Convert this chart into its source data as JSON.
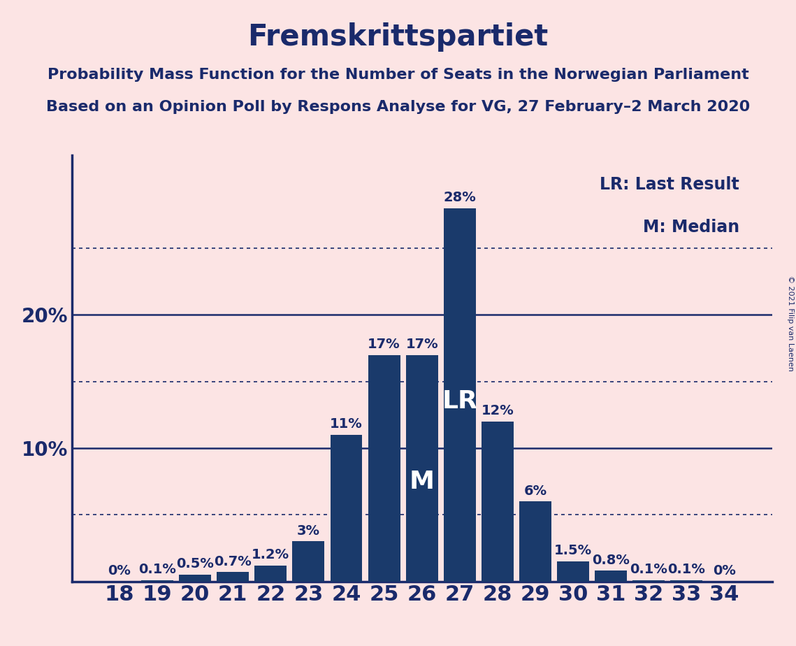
{
  "title": "Fremskrittspartiet",
  "subtitle1": "Probability Mass Function for the Number of Seats in the Norwegian Parliament",
  "subtitle2": "Based on an Opinion Poll by Respons Analyse for VG, 27 February–2 March 2020",
  "copyright": "© 2021 Filip van Laenen",
  "seats": [
    18,
    19,
    20,
    21,
    22,
    23,
    24,
    25,
    26,
    27,
    28,
    29,
    30,
    31,
    32,
    33,
    34
  ],
  "values": [
    0.0,
    0.1,
    0.5,
    0.7,
    1.2,
    3.0,
    11.0,
    17.0,
    17.0,
    28.0,
    12.0,
    6.0,
    1.5,
    0.8,
    0.1,
    0.1,
    0.0
  ],
  "labels": [
    "0%",
    "0.1%",
    "0.5%",
    "0.7%",
    "1.2%",
    "3%",
    "11%",
    "17%",
    "17%",
    "28%",
    "12%",
    "6%",
    "1.5%",
    "0.8%",
    "0.1%",
    "0.1%",
    "0%"
  ],
  "bar_color": "#1a3a6b",
  "background_color": "#fce4e4",
  "text_color": "#1a2a6b",
  "axis_color": "#1a2a6b",
  "lr_seat": 27,
  "median_seat": 26,
  "ylim_max": 32,
  "dotted_lines": [
    5,
    15,
    25
  ],
  "solid_lines": [
    10,
    20
  ],
  "title_fontsize": 30,
  "subtitle_fontsize": 16,
  "ylabel_fontsize": 20,
  "xlabel_fontsize": 22,
  "bar_label_fontsize": 14,
  "legend_fontsize": 17,
  "lr_label_fontsize": 26,
  "m_label_fontsize": 26
}
